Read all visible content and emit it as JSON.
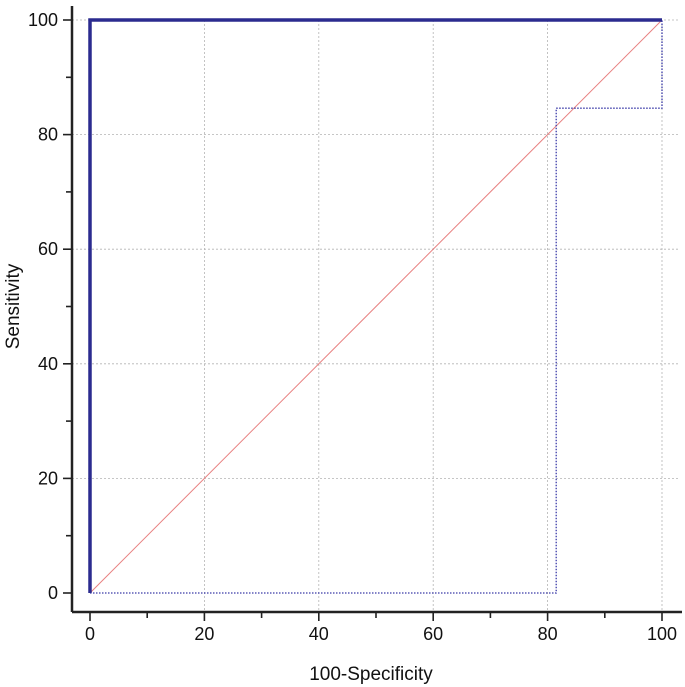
{
  "chart_data": {
    "type": "line",
    "title": "",
    "xlabel": "100-Specificity",
    "ylabel": "Sensitivity",
    "xlim": [
      0,
      100
    ],
    "ylim": [
      0,
      100
    ],
    "x_ticks": [
      0,
      20,
      40,
      60,
      80,
      100
    ],
    "y_ticks": [
      0,
      20,
      40,
      60,
      80,
      100
    ],
    "x_tick_labels": [
      "0",
      "20",
      "40",
      "60",
      "80",
      "100"
    ],
    "y_tick_labels": [
      "0",
      "20",
      "40",
      "60",
      "80",
      "100"
    ],
    "grid": true,
    "series": [
      {
        "role": "roc-curve",
        "style": "solid",
        "color": "#2b2b8f",
        "points": [
          [
            0,
            0
          ],
          [
            0,
            100
          ],
          [
            100,
            100
          ]
        ]
      },
      {
        "role": "confidence-bound",
        "style": "dotted",
        "color": "#3a3aa8",
        "points": [
          [
            0,
            0
          ],
          [
            81.5,
            0
          ],
          [
            81.5,
            84.6
          ],
          [
            100,
            84.6
          ],
          [
            100,
            100
          ]
        ]
      },
      {
        "role": "reference-diagonal",
        "style": "solid",
        "color": "#e88080",
        "points": [
          [
            0,
            0
          ],
          [
            100,
            100
          ]
        ]
      }
    ]
  }
}
